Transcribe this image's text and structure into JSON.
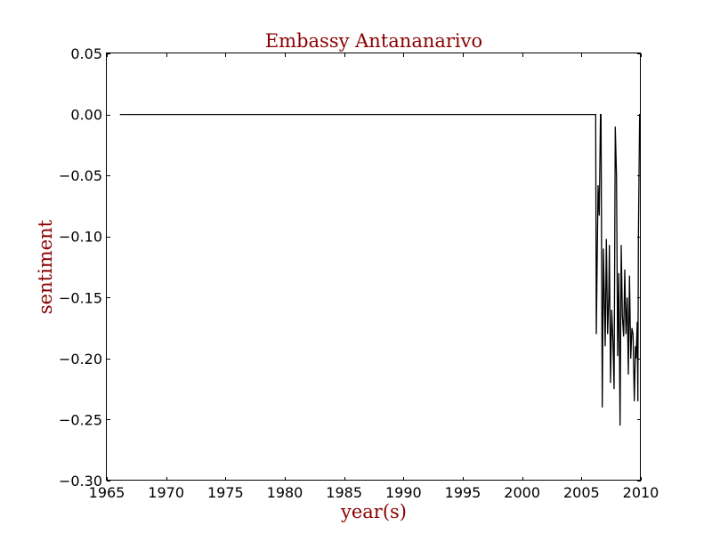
{
  "colors": {
    "title": "#8b0000",
    "axis_title": "#8b0000",
    "line": "#000000",
    "frame": "#000000",
    "background": "#ffffff"
  },
  "chart_data": {
    "type": "line",
    "title": "Embassy Antananarivo",
    "xlabel": "year(s)",
    "ylabel": "sentiment",
    "xlim": [
      1965,
      2010
    ],
    "ylim": [
      -0.3,
      0.05
    ],
    "xticks": [
      1965,
      1970,
      1975,
      1980,
      1985,
      1990,
      1995,
      2000,
      2005,
      2010
    ],
    "xtick_labels": [
      "1965",
      "1970",
      "1975",
      "1980",
      "1985",
      "1990",
      "1995",
      "2000",
      "2005",
      "2010"
    ],
    "yticks": [
      0.05,
      0,
      -0.05,
      -0.1,
      -0.15,
      -0.2,
      -0.25,
      -0.3
    ],
    "ytick_labels": [
      "0.05",
      "0.00",
      "−0.05",
      "−0.10",
      "−0.15",
      "−0.20",
      "−0.25",
      "−0.30"
    ],
    "grid": false,
    "legend": "none",
    "series": [
      {
        "x": [
          1966.1,
          2006.2,
          2006.25,
          2006.4,
          2006.5,
          2006.6,
          2006.65,
          2006.75,
          2006.85,
          2007.0,
          2007.1,
          2007.2,
          2007.3,
          2007.35,
          2007.45,
          2007.55,
          2007.65,
          2007.75,
          2007.85,
          2007.95,
          2008.05,
          2008.15,
          2008.25,
          2008.35,
          2008.45,
          2008.55,
          2008.65,
          2008.75,
          2008.85,
          2008.95,
          2009.05,
          2009.15,
          2009.25,
          2009.35,
          2009.45,
          2009.55,
          2009.6,
          2009.7,
          2009.75,
          2009.8,
          2009.9,
          2010.0
        ],
        "y": [
          0.0,
          0.0,
          -0.18,
          -0.058,
          -0.083,
          0.0,
          0.0,
          -0.24,
          -0.11,
          -0.19,
          -0.102,
          -0.18,
          -0.15,
          -0.107,
          -0.22,
          -0.16,
          -0.185,
          -0.225,
          -0.01,
          -0.05,
          -0.198,
          -0.13,
          -0.255,
          -0.107,
          -0.165,
          -0.182,
          -0.127,
          -0.18,
          -0.15,
          -0.213,
          -0.132,
          -0.2,
          -0.175,
          -0.18,
          -0.235,
          -0.19,
          -0.2,
          -0.17,
          -0.235,
          -0.1,
          0.0,
          0.0
        ]
      }
    ]
  }
}
